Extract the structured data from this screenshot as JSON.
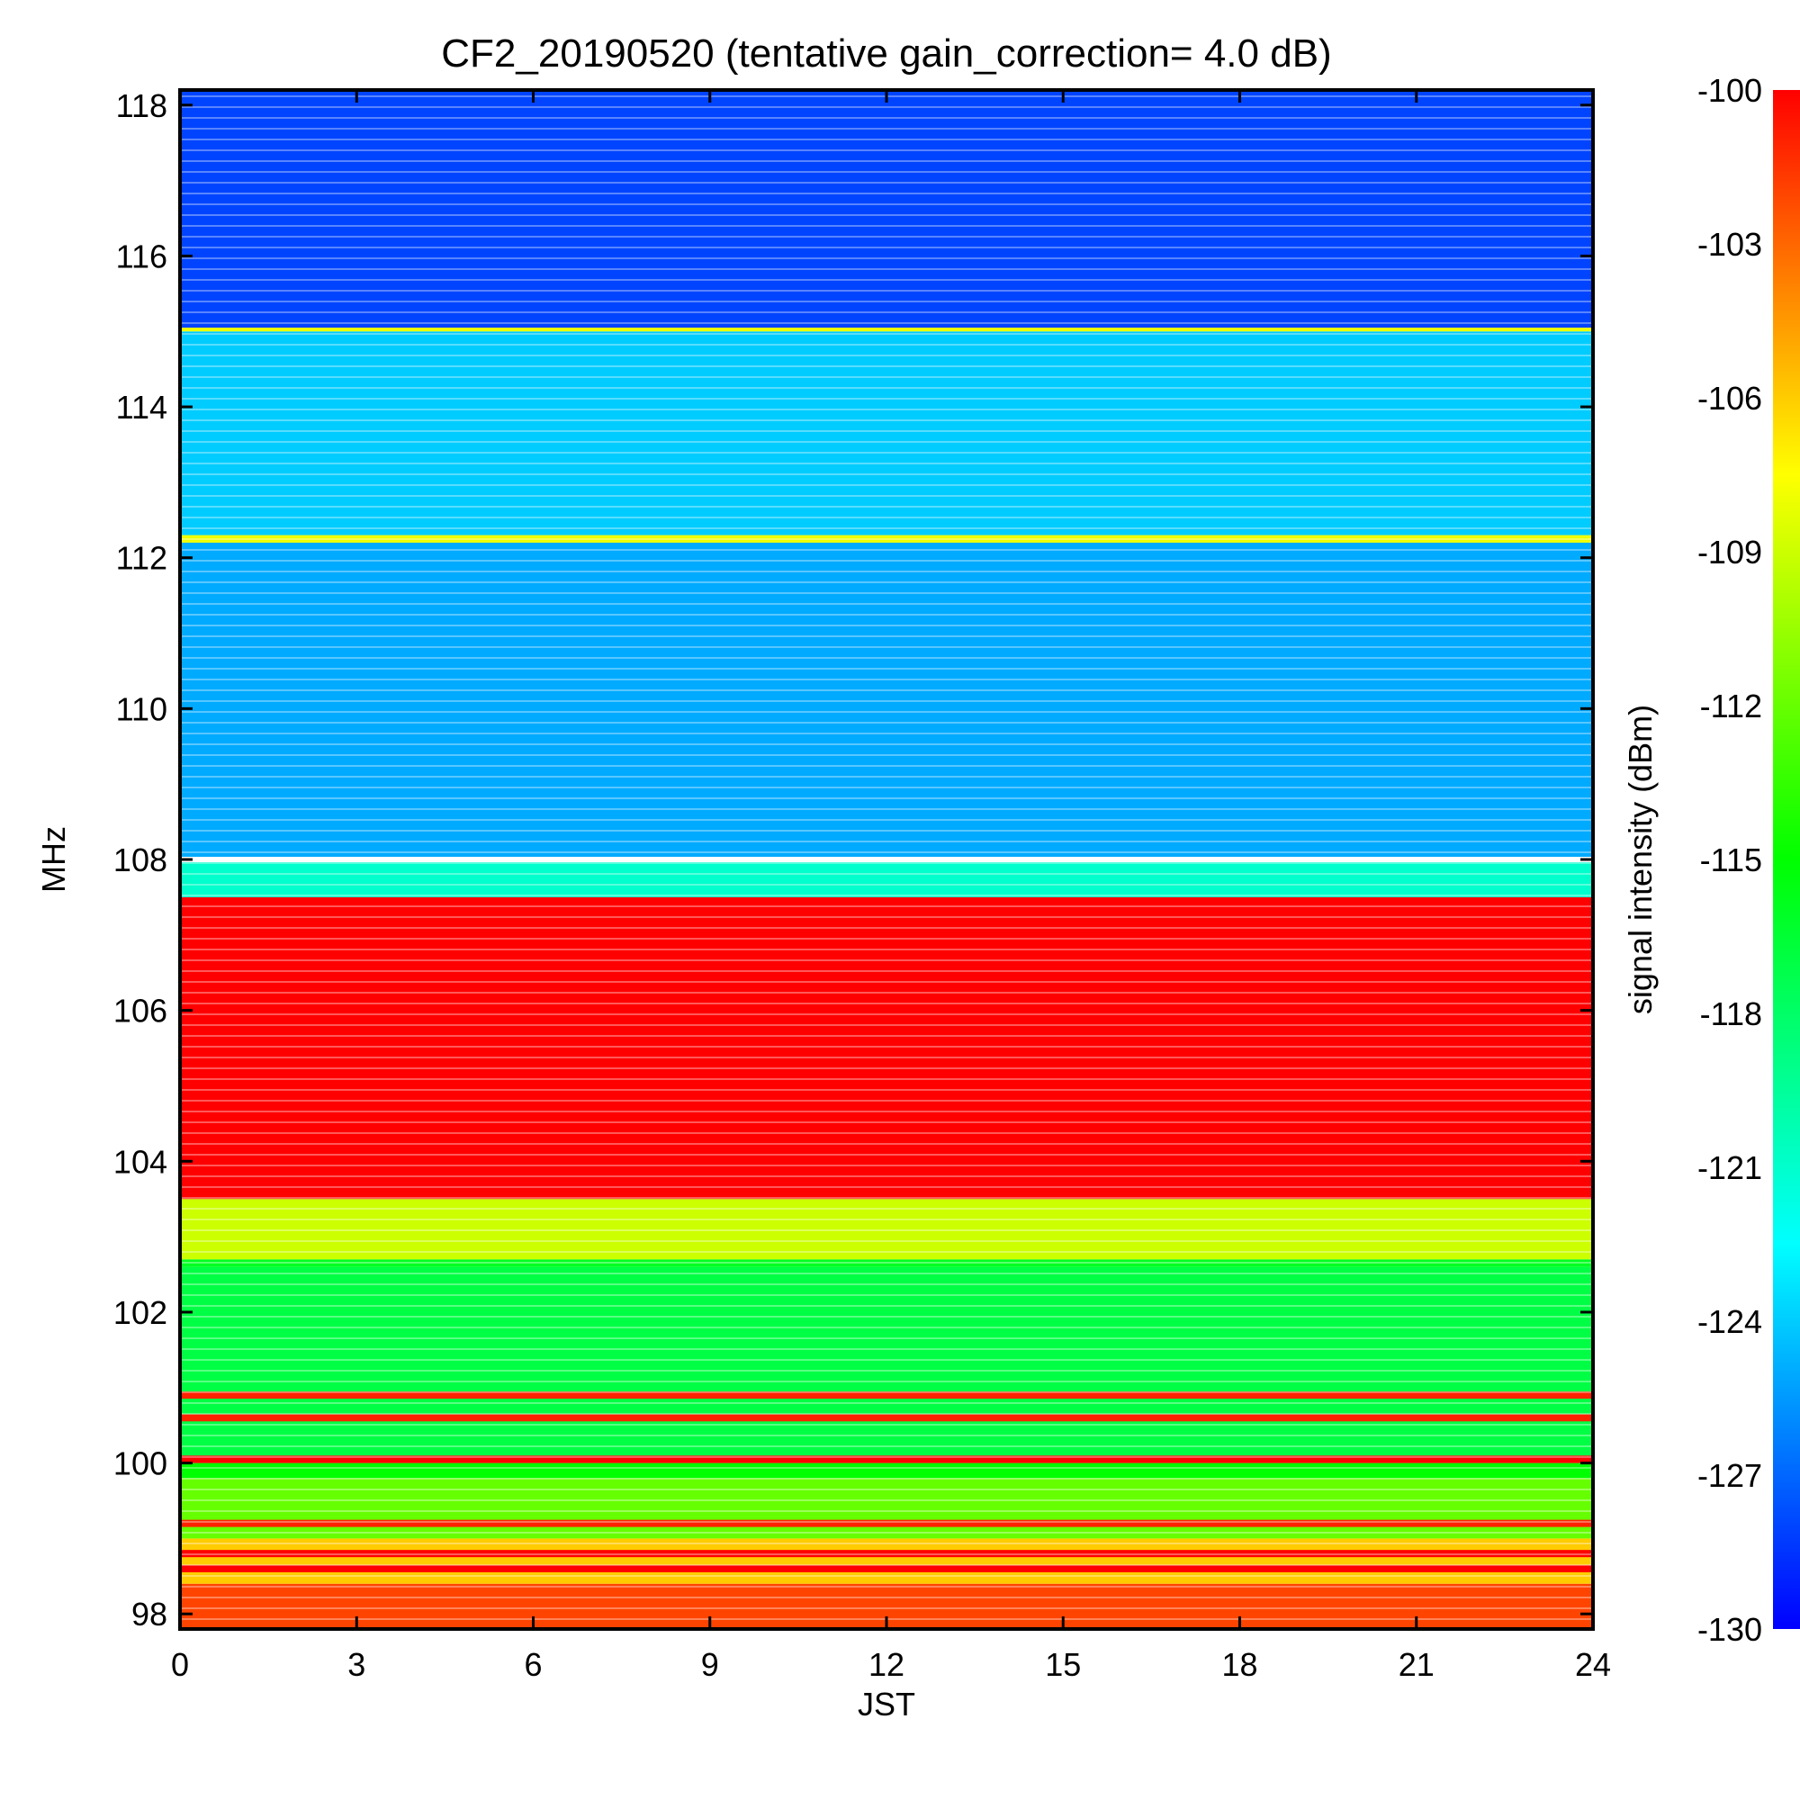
{
  "chart_data": {
    "type": "heatmap",
    "title": "CF2_20190520 (tentative gain_correction=  4.0 dB)",
    "xlabel": "JST",
    "ylabel": "MHz",
    "colorbar_label": "signal intensity (dBm)",
    "xlim": [
      0,
      24
    ],
    "ylim": [
      97.8,
      118.2
    ],
    "clim": [
      -130,
      -100
    ],
    "x_ticks": [
      0,
      3,
      6,
      9,
      12,
      15,
      18,
      21,
      24
    ],
    "x_tick_labels": [
      "0",
      "3",
      "6",
      "9",
      "12",
      "15",
      "18",
      "21",
      "24"
    ],
    "y_ticks": [
      98,
      100,
      102,
      104,
      106,
      108,
      110,
      112,
      114,
      116,
      118
    ],
    "y_tick_labels": [
      "98",
      "100",
      "102",
      "104",
      "106",
      "108",
      "110",
      "112",
      "114",
      "116",
      "118"
    ],
    "colorbar_ticks": [
      -100,
      -103,
      -106,
      -109,
      -112,
      -115,
      -118,
      -121,
      -124,
      -127,
      -130
    ],
    "colorbar_tick_labels": [
      "-100",
      "-103",
      "-106",
      "-109",
      "-112",
      "-115",
      "-118",
      "-121",
      "-124",
      "-127",
      "-130"
    ],
    "colormap": [
      "#0000ff",
      "#0080ff",
      "#00ffff",
      "#00ff80",
      "#00ff00",
      "#80ff00",
      "#ffff00",
      "#ff8000",
      "#ff0000"
    ],
    "bands": [
      {
        "from": 97.8,
        "to": 98.4,
        "level": -102
      },
      {
        "from": 98.4,
        "to": 99.0,
        "level": -106
      },
      {
        "from": 99.0,
        "to": 99.8,
        "level": -112
      },
      {
        "from": 99.8,
        "to": 100.0,
        "level": -115
      },
      {
        "from": 100.0,
        "to": 100.1,
        "level": -100
      },
      {
        "from": 100.1,
        "to": 102.6,
        "level": -117
      },
      {
        "from": 102.6,
        "to": 102.7,
        "level": -116
      },
      {
        "from": 102.7,
        "to": 103.5,
        "level": -109
      },
      {
        "from": 103.5,
        "to": 107.5,
        "level": -100
      },
      {
        "from": 107.5,
        "to": 108.0,
        "level": -121
      },
      {
        "from": 108.0,
        "to": 112.2,
        "level": -125
      },
      {
        "from": 112.2,
        "to": 112.3,
        "level": -108
      },
      {
        "from": 112.3,
        "to": 115.0,
        "level": -124
      },
      {
        "from": 115.0,
        "to": 115.05,
        "level": -108
      },
      {
        "from": 115.05,
        "to": 118.2,
        "level": -128
      }
    ],
    "lines": [
      {
        "freq": 98.6,
        "level": -100
      },
      {
        "freq": 98.8,
        "level": -100
      },
      {
        "freq": 99.2,
        "level": -101
      },
      {
        "freq": 100.6,
        "level": -101
      },
      {
        "freq": 100.9,
        "level": -101
      }
    ]
  }
}
